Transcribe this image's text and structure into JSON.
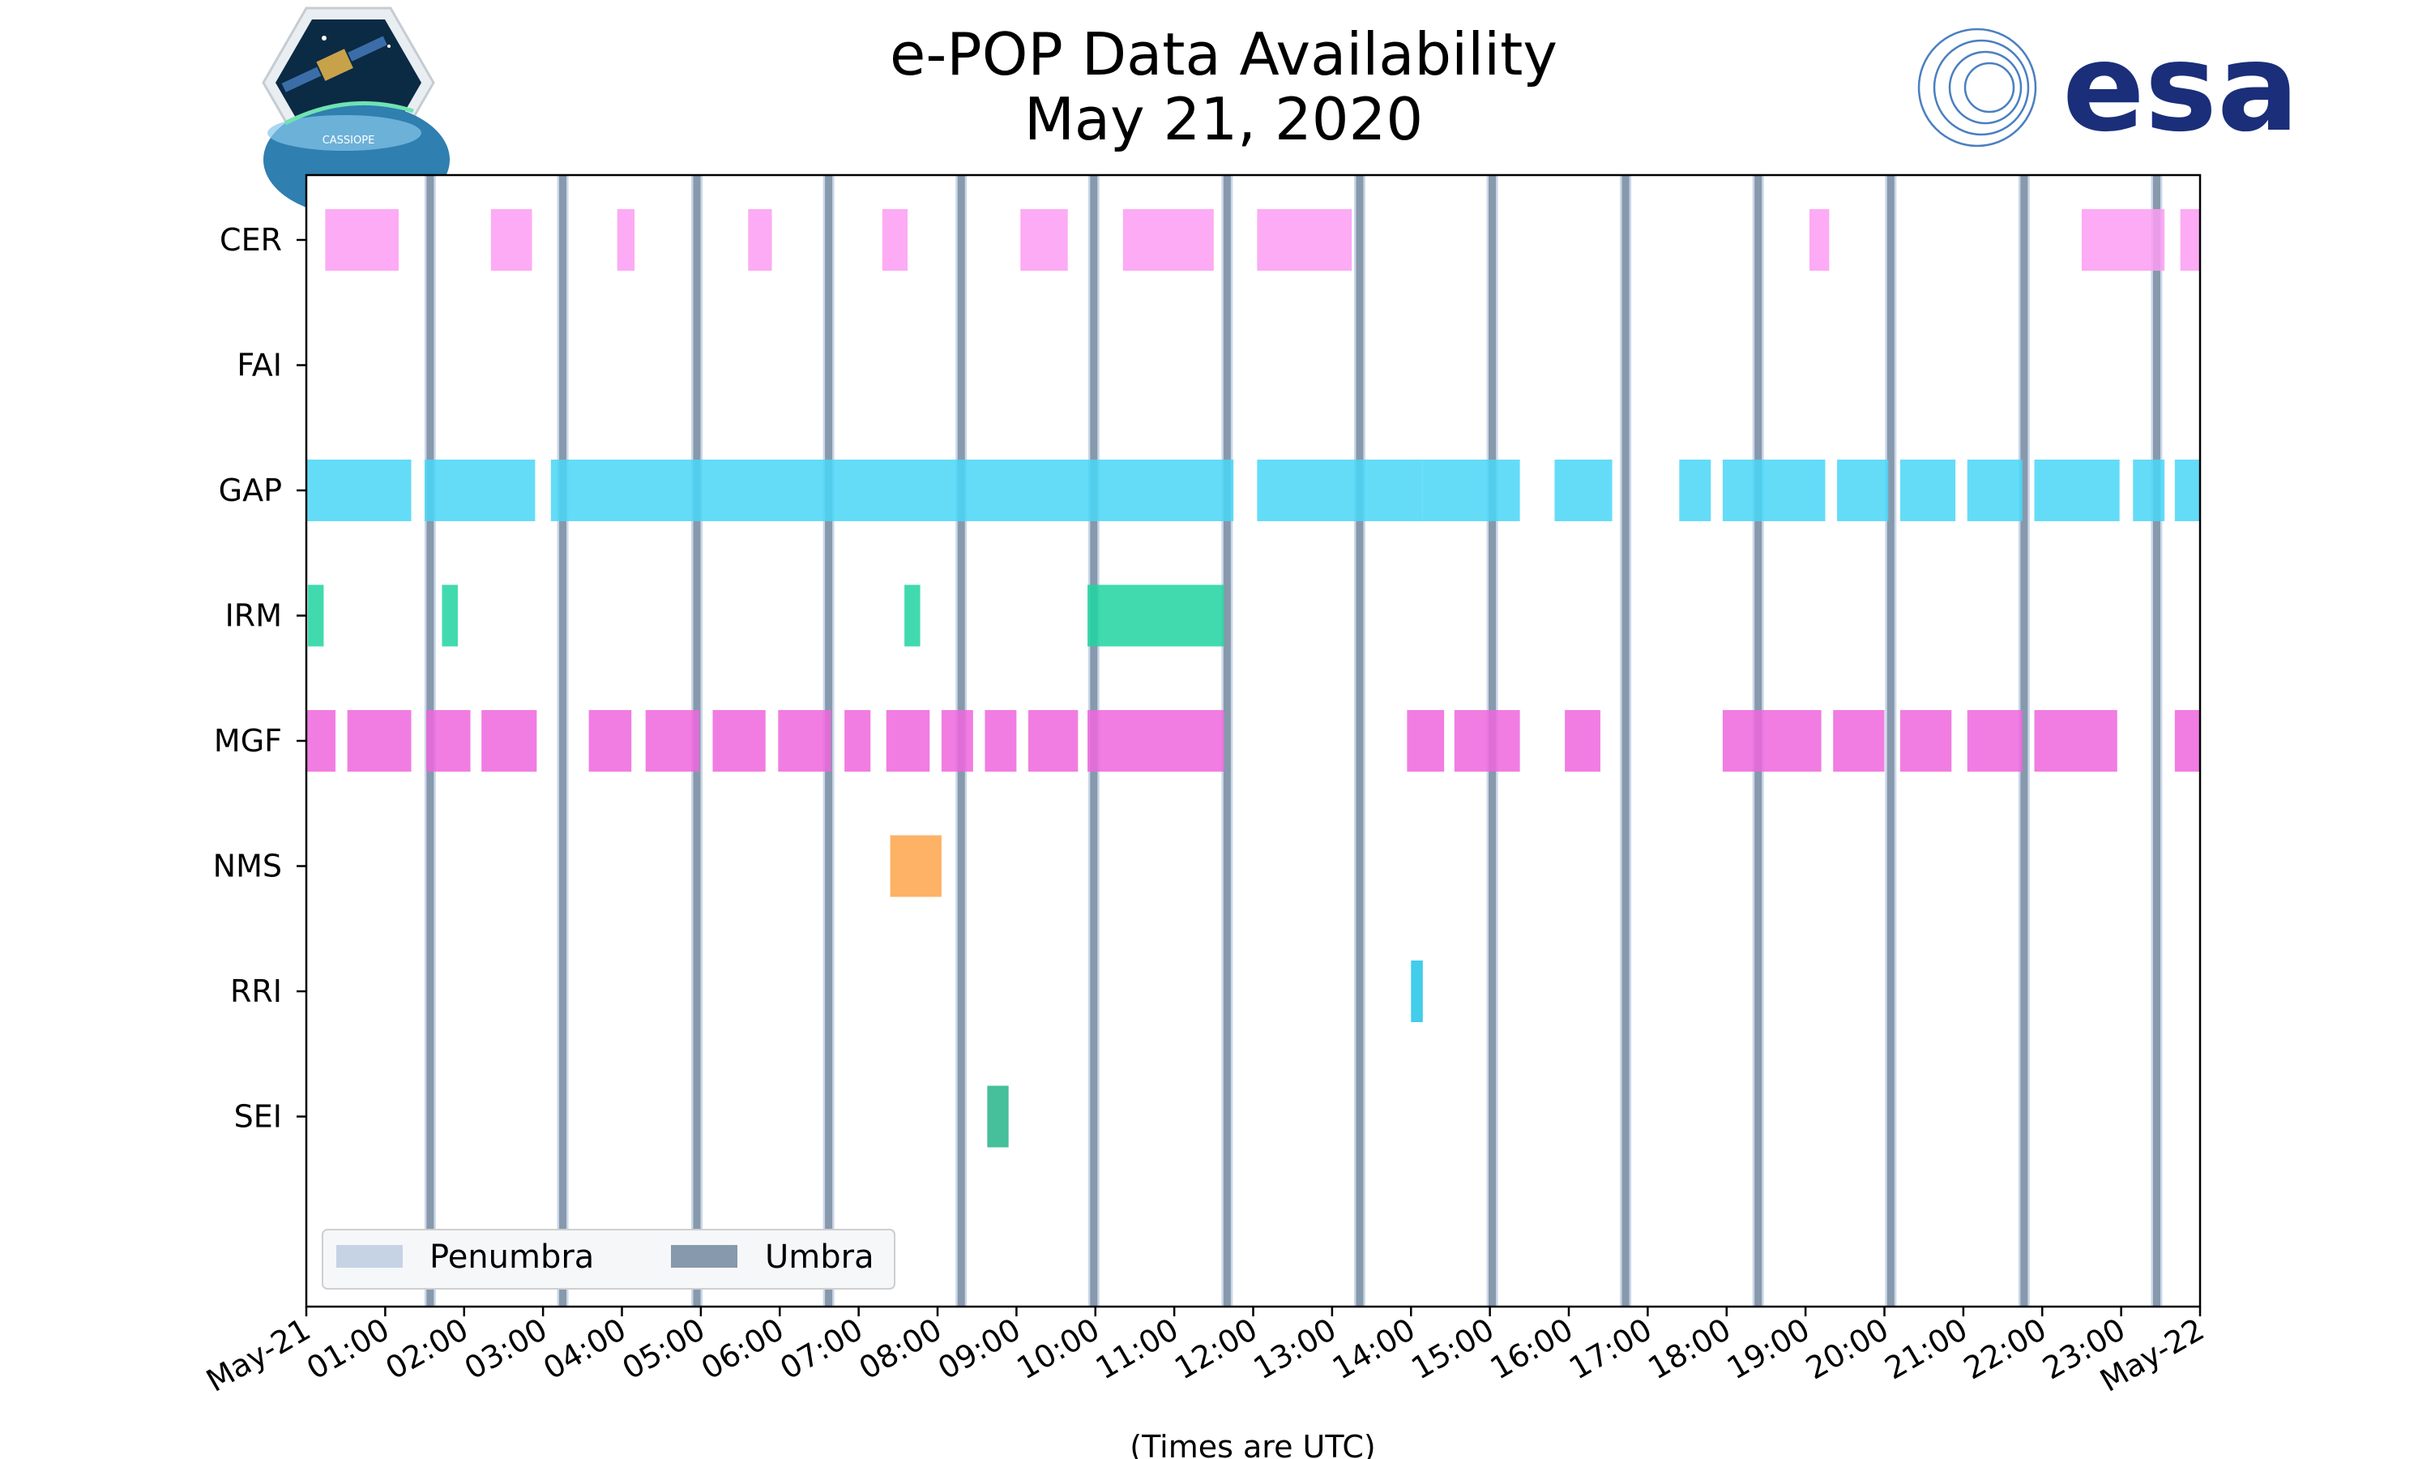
{
  "chart_data": {
    "type": "timeline",
    "title": [
      "e-POP Data Availability",
      "May 21, 2020"
    ],
    "xlabel": "(Times are UTC)",
    "xlim_hours": [
      0,
      24
    ],
    "x_ticks": [
      {
        "h": 0,
        "label": "May-21"
      },
      {
        "h": 1,
        "label": "01:00"
      },
      {
        "h": 2,
        "label": "02:00"
      },
      {
        "h": 3,
        "label": "03:00"
      },
      {
        "h": 4,
        "label": "04:00"
      },
      {
        "h": 5,
        "label": "05:00"
      },
      {
        "h": 6,
        "label": "06:00"
      },
      {
        "h": 7,
        "label": "07:00"
      },
      {
        "h": 8,
        "label": "08:00"
      },
      {
        "h": 9,
        "label": "09:00"
      },
      {
        "h": 10,
        "label": "10:00"
      },
      {
        "h": 11,
        "label": "11:00"
      },
      {
        "h": 12,
        "label": "12:00"
      },
      {
        "h": 13,
        "label": "13:00"
      },
      {
        "h": 14,
        "label": "14:00"
      },
      {
        "h": 15,
        "label": "15:00"
      },
      {
        "h": 16,
        "label": "16:00"
      },
      {
        "h": 17,
        "label": "17:00"
      },
      {
        "h": 18,
        "label": "18:00"
      },
      {
        "h": 19,
        "label": "19:00"
      },
      {
        "h": 20,
        "label": "20:00"
      },
      {
        "h": 21,
        "label": "21:00"
      },
      {
        "h": 22,
        "label": "22:00"
      },
      {
        "h": 23,
        "label": "23:00"
      },
      {
        "h": 24,
        "label": "May-22"
      }
    ],
    "instruments": [
      {
        "name": "CER",
        "color": "#fb9cf2",
        "intervals": [
          [
            0.24,
            1.17
          ],
          [
            2.34,
            2.86
          ],
          [
            3.94,
            4.16
          ],
          [
            5.6,
            5.9
          ],
          [
            7.3,
            7.62
          ],
          [
            9.05,
            9.65
          ],
          [
            10.35,
            11.5
          ],
          [
            12.05,
            13.25
          ],
          [
            19.05,
            19.3
          ],
          [
            22.5,
            23.55
          ],
          [
            23.75,
            24.0
          ]
        ]
      },
      {
        "name": "FAI",
        "color": "#000000",
        "intervals": []
      },
      {
        "name": "GAP",
        "color": "#49d6f7",
        "intervals": [
          [
            0.0,
            1.33
          ],
          [
            1.5,
            2.9
          ],
          [
            3.1,
            11.75
          ],
          [
            12.05,
            14.15
          ],
          [
            14.15,
            15.38
          ],
          [
            15.82,
            16.55
          ],
          [
            17.4,
            17.8
          ],
          [
            17.95,
            19.25
          ],
          [
            19.4,
            20.05
          ],
          [
            20.2,
            20.9
          ],
          [
            21.05,
            21.75
          ],
          [
            21.9,
            22.98
          ],
          [
            23.15,
            23.55
          ],
          [
            23.68,
            24.0
          ]
        ]
      },
      {
        "name": "IRM",
        "color": "#20d3a0",
        "intervals": [
          [
            0.02,
            0.22
          ],
          [
            1.72,
            1.92
          ],
          [
            7.58,
            7.78
          ],
          [
            9.9,
            11.63
          ]
        ]
      },
      {
        "name": "MGF",
        "color": "#ee66dd",
        "intervals": [
          [
            0.0,
            0.37
          ],
          [
            0.52,
            1.33
          ],
          [
            1.52,
            2.08
          ],
          [
            2.22,
            2.92
          ],
          [
            3.58,
            4.12
          ],
          [
            4.3,
            4.98
          ],
          [
            5.15,
            5.82
          ],
          [
            5.98,
            6.65
          ],
          [
            6.82,
            7.15
          ],
          [
            7.35,
            7.9
          ],
          [
            8.05,
            8.45
          ],
          [
            8.6,
            9.0
          ],
          [
            9.15,
            9.78
          ],
          [
            9.9,
            11.63
          ],
          [
            13.95,
            14.42
          ],
          [
            14.55,
            15.38
          ],
          [
            15.95,
            16.4
          ],
          [
            17.95,
            19.2
          ],
          [
            19.35,
            20.0
          ],
          [
            20.2,
            20.85
          ],
          [
            21.05,
            21.75
          ],
          [
            21.9,
            22.95
          ],
          [
            23.68,
            24.0
          ]
        ]
      },
      {
        "name": "NMS",
        "color": "#fda54a",
        "intervals": [
          [
            7.4,
            8.05
          ]
        ]
      },
      {
        "name": "RRI",
        "color": "#21c4e6",
        "intervals": [
          [
            14.0,
            14.15
          ]
        ]
      },
      {
        "name": "SEI",
        "color": "#26b48a",
        "intervals": [
          [
            8.63,
            8.9
          ]
        ]
      }
    ],
    "eclipse": {
      "penumbra_color": "#c5d3e5",
      "umbra_color": "#8799ac",
      "umbra_times_hours": [
        1.57,
        3.25,
        4.95,
        6.62,
        8.3,
        9.98,
        11.67,
        13.35,
        15.03,
        16.72,
        18.4,
        20.08,
        21.77,
        23.45
      ]
    },
    "legend": {
      "position": "lower-left",
      "entries": [
        {
          "label": "Penumbra",
          "color": "#c5d3e5"
        },
        {
          "label": "Umbra",
          "color": "#8799ac"
        }
      ]
    }
  },
  "logos": {
    "esa_text": "esa",
    "cassiope_text": "CASSIOPE",
    "esa_color": "#1a2e7a",
    "ring_color": "#4a7fc0"
  }
}
